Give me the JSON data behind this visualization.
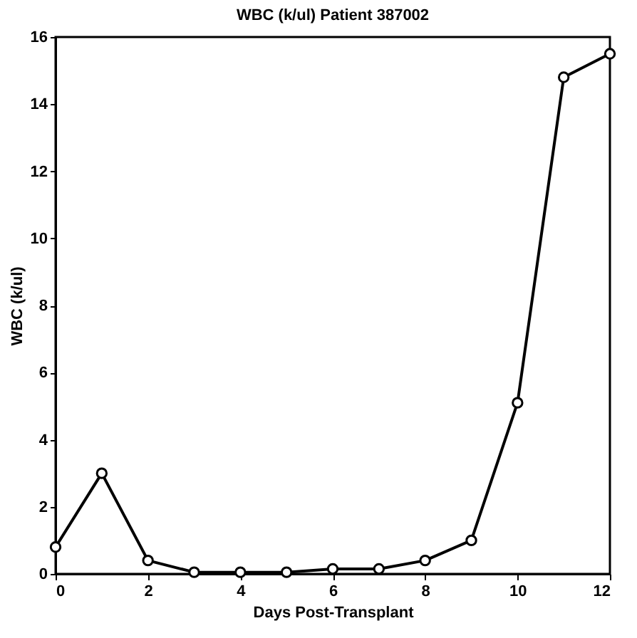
{
  "chart_data": {
    "type": "line",
    "title": "WBC (k/ul)  Patient 387002",
    "xlabel": "Days Post-Transplant",
    "ylabel": "WBC (k/ul)",
    "x": [
      0,
      1,
      2,
      3,
      4,
      5,
      6,
      7,
      8,
      9,
      10,
      11,
      12
    ],
    "series": [
      {
        "color": "#000000",
        "values": [
          0.8,
          3.0,
          0.4,
          0.05,
          0.05,
          0.05,
          0.15,
          0.15,
          0.4,
          1.0,
          5.1,
          14.8,
          15.5
        ]
      }
    ],
    "xlim": [
      0,
      12
    ],
    "xticks": [
      0,
      2,
      4,
      6,
      8,
      10,
      12
    ],
    "ylim": [
      0,
      16
    ],
    "yticks": [
      0,
      2,
      4,
      6,
      8,
      10,
      12,
      14,
      16
    ],
    "grid": false,
    "marker": "circle",
    "line_style": "solid"
  }
}
